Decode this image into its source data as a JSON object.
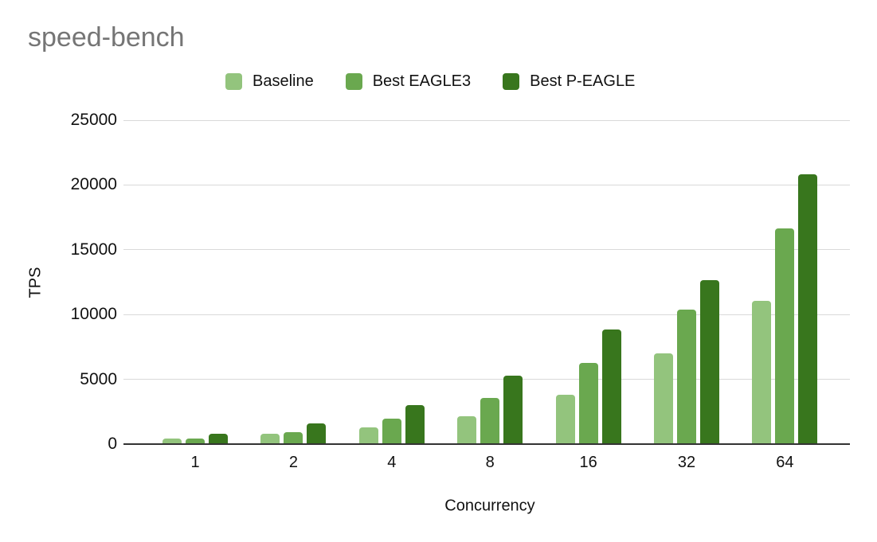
{
  "title": "speed-bench",
  "axes": {
    "y_title": "TPS",
    "x_title": "Concurrency"
  },
  "colors": {
    "title_text": "#757575",
    "label_text": "#111111",
    "grid_line": "#d9d9d9",
    "axis_line": "#333333",
    "background": "#ffffff"
  },
  "legend": {
    "items": [
      "Baseline",
      "Best EAGLE3",
      "Best P-EAGLE"
    ]
  },
  "chart_data": {
    "type": "bar",
    "title": "speed-bench",
    "xlabel": "Concurrency",
    "ylabel": "TPS",
    "ylim": [
      0,
      25000
    ],
    "yticks": [
      0,
      5000,
      10000,
      15000,
      20000,
      25000
    ],
    "grid": true,
    "legend_position": "top",
    "categories": [
      "1",
      "2",
      "4",
      "8",
      "16",
      "32",
      "64"
    ],
    "series": [
      {
        "name": "Baseline",
        "color": "#93c47d",
        "values": [
          450,
          820,
          1300,
          2120,
          3820,
          7000,
          11080
        ]
      },
      {
        "name": "Best EAGLE3",
        "color": "#6aa84f",
        "values": [
          460,
          950,
          1950,
          3560,
          6270,
          10380,
          16650
        ]
      },
      {
        "name": "Best P-EAGLE",
        "color": "#38761d",
        "values": [
          780,
          1600,
          2980,
          5300,
          8860,
          12670,
          20810
        ]
      }
    ]
  }
}
